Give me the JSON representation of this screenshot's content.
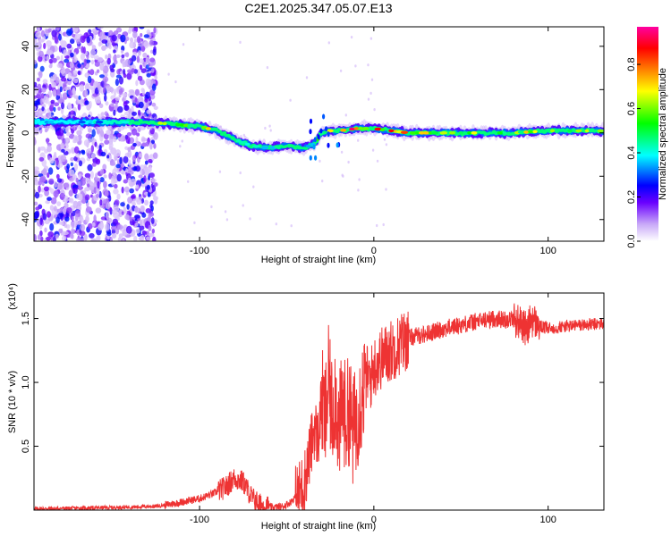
{
  "title": "C2E1.2025.347.05.07.E13",
  "chart_data": [
    {
      "type": "heatmap",
      "title": "C2E1.2025.347.05.07.E13",
      "xlabel": "Height of straight line (km)",
      "ylabel": "Frequency (Hz)",
      "xlim": [
        -195,
        132
      ],
      "ylim": [
        -50,
        49
      ],
      "x_ticks": [
        -100,
        0,
        100
      ],
      "y_ticks": [
        -40,
        -20,
        0,
        20,
        40
      ],
      "colorbar": {
        "label": "Normalized spectral amplitude",
        "range": [
          0,
          0.97
        ],
        "ticks": [
          0.0,
          0.2,
          0.4,
          0.6,
          0.8
        ],
        "colors": [
          "#ffffff",
          "#a070f0",
          "#0000ff",
          "#00ffff",
          "#00ff00",
          "#ffff00",
          "#ff8000",
          "#ff0000",
          "#ff00ff"
        ]
      },
      "ridge": {
        "description": "dominant frequency ridge",
        "x": [
          -195,
          -160,
          -130,
          -115,
          -100,
          -90,
          -80,
          -70,
          -60,
          -50,
          -40,
          -34,
          -30,
          -25,
          -20,
          -10,
          0,
          10,
          20,
          50,
          80,
          100,
          132
        ],
        "y": [
          5,
          5,
          5,
          4,
          3,
          1,
          -3,
          -6,
          -7,
          -6,
          -7,
          -5,
          0,
          1,
          1,
          2,
          2,
          1,
          0,
          0,
          0,
          1,
          1
        ],
        "amplitude": [
          0.4,
          0.4,
          0.5,
          0.7,
          0.6,
          0.75,
          0.65,
          0.55,
          0.5,
          0.55,
          0.5,
          0.5,
          0.6,
          0.65,
          0.8,
          0.9,
          0.75,
          0.9,
          0.7,
          0.6,
          0.65,
          0.7,
          0.6
        ]
      },
      "noise_region_x": [
        -195,
        -125
      ]
    },
    {
      "type": "line",
      "series": [
        {
          "name": "SNR",
          "color": "#ee3333"
        }
      ],
      "xlabel": "Height of straight line (km)",
      "ylabel": "SNR (10 * v/v)",
      "y_scale_note": "(x10⁴)",
      "xlim": [
        -195,
        132
      ],
      "ylim": [
        0,
        1.7
      ],
      "x_ticks": [
        -100,
        0,
        100
      ],
      "y_ticks": [
        0.5,
        1.0,
        1.5
      ],
      "x": [
        -195,
        -150,
        -125,
        -115,
        -100,
        -92,
        -85,
        -80,
        -75,
        -70,
        -65,
        -58,
        -52,
        -48,
        -44,
        -40,
        -38,
        -36,
        -34,
        -32,
        -30,
        -28,
        -26,
        -24,
        -22,
        -20,
        -18,
        -16,
        -14,
        -12,
        -10,
        -8,
        -6,
        -4,
        -2,
        0,
        5,
        10,
        15,
        20,
        30,
        40,
        50,
        60,
        70,
        75,
        80,
        85,
        88,
        90,
        95,
        100,
        110,
        120,
        132
      ],
      "y": [
        0.01,
        0.02,
        0.03,
        0.05,
        0.09,
        0.13,
        0.18,
        0.25,
        0.22,
        0.1,
        0.04,
        0.02,
        0.03,
        0.06,
        0.12,
        0.22,
        0.35,
        0.5,
        0.65,
        0.55,
        0.85,
        0.7,
        1.0,
        0.75,
        0.95,
        0.6,
        0.85,
        0.7,
        0.8,
        0.6,
        0.72,
        0.85,
        0.95,
        1.05,
        1.02,
        1.12,
        1.2,
        1.25,
        1.3,
        1.35,
        1.38,
        1.42,
        1.45,
        1.48,
        1.5,
        1.49,
        1.5,
        1.46,
        1.4,
        1.5,
        1.44,
        1.42,
        1.44,
        1.45,
        1.46
      ]
    }
  ]
}
